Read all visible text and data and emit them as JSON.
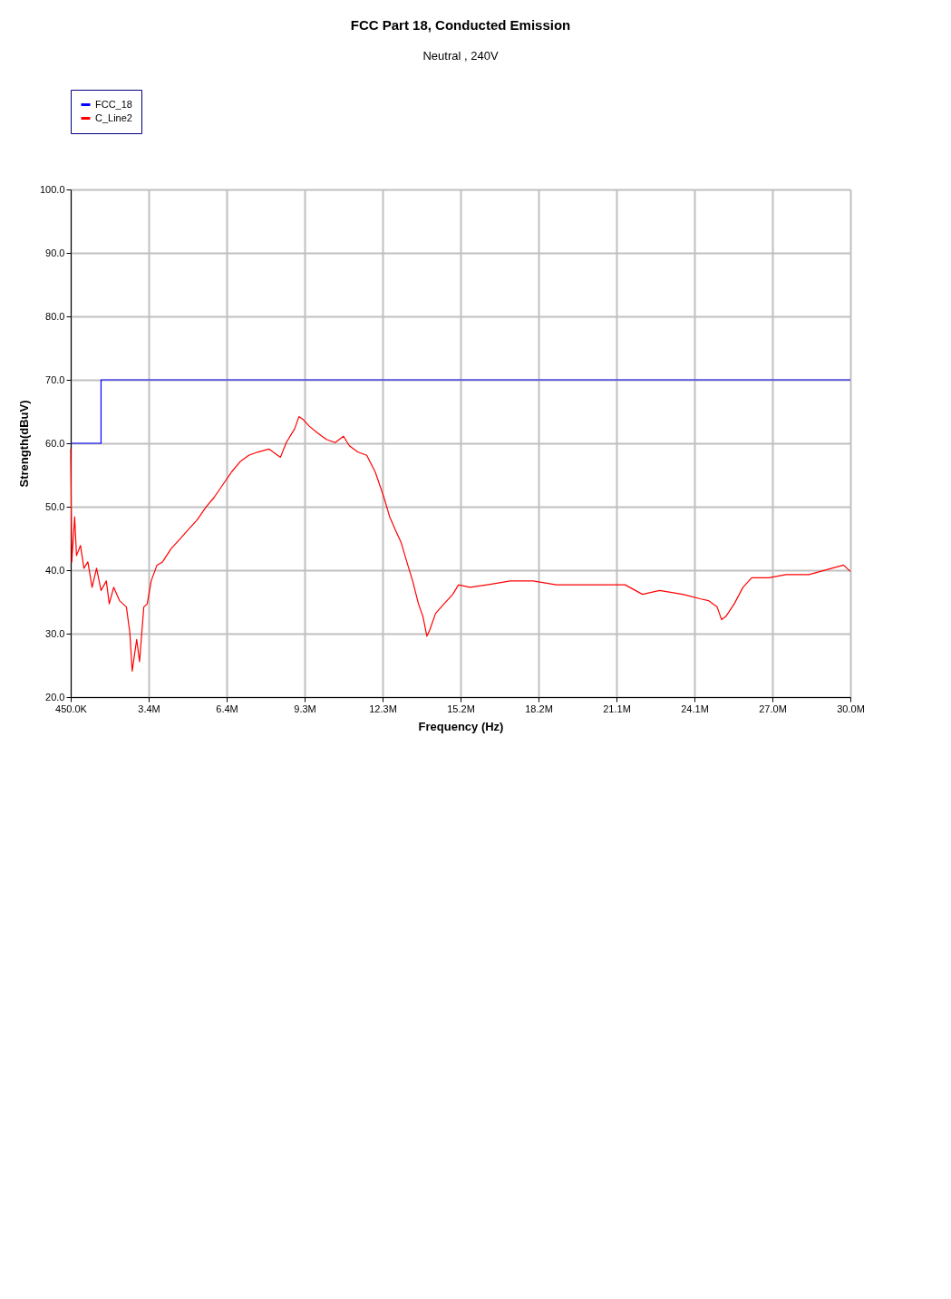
{
  "chart_data": {
    "type": "line",
    "title": "FCC Part 18, Conducted Emission",
    "subtitle": "Neutral , 240V",
    "xlabel": "Frequency (Hz)",
    "ylabel": "Strength(dBuV)",
    "xlim": [
      450000,
      30000000
    ],
    "xticks": [
      {
        "value": 450000,
        "label": "450.0K"
      },
      {
        "value": 3405000,
        "label": "3.4M"
      },
      {
        "value": 6360000,
        "label": "6.4M"
      },
      {
        "value": 9315000,
        "label": "9.3M"
      },
      {
        "value": 12270000,
        "label": "12.3M"
      },
      {
        "value": 15225000,
        "label": "15.2M"
      },
      {
        "value": 18180000,
        "label": "18.2M"
      },
      {
        "value": 21135000,
        "label": "21.1M"
      },
      {
        "value": 24090000,
        "label": "24.1M"
      },
      {
        "value": 27045000,
        "label": "27.0M"
      },
      {
        "value": 30000000,
        "label": "30.0M"
      }
    ],
    "ylim": [
      20,
      100
    ],
    "yticks": [
      {
        "value": 20,
        "label": "20.0"
      },
      {
        "value": 30,
        "label": "30.0"
      },
      {
        "value": 40,
        "label": "40.0"
      },
      {
        "value": 50,
        "label": "50.0"
      },
      {
        "value": 60,
        "label": "60.0"
      },
      {
        "value": 70,
        "label": "70.0"
      },
      {
        "value": 80,
        "label": "80.0"
      },
      {
        "value": 90,
        "label": "90.0"
      },
      {
        "value": 100,
        "label": "100.0"
      }
    ],
    "grid": true,
    "legend": "top left",
    "line_style": "solid",
    "marker": "none",
    "series": [
      {
        "name": "FCC_18",
        "color": "#0000ff",
        "x": [
          450000,
          1600000,
          1600000,
          30000000
        ],
        "values": [
          60,
          60,
          70,
          70
        ]
      },
      {
        "name": "C_Line2",
        "color": "#ff0000",
        "x": [
          450000,
          490000,
          600000,
          670000,
          820000,
          950000,
          1100000,
          1260000,
          1430000,
          1600000,
          1800000,
          1910000,
          2080000,
          2300000,
          2560000,
          2690000,
          2780000,
          2950000,
          3060000,
          3220000,
          3350000,
          3500000,
          3720000,
          3930000,
          4260000,
          4590000,
          4910000,
          5240000,
          5570000,
          5890000,
          6220000,
          6550000,
          6870000,
          7200000,
          7530000,
          7960000,
          8400000,
          8620000,
          8940000,
          9100000,
          9270000,
          9490000,
          9810000,
          10140000,
          10470000,
          10790000,
          11010000,
          11340000,
          11670000,
          11990000,
          12320000,
          12540000,
          12750000,
          12970000,
          13190000,
          13410000,
          13630000,
          13800000,
          13950000,
          14060000,
          14280000,
          14600000,
          14930000,
          15150000,
          15580000,
          16240000,
          17110000,
          17980000,
          18850000,
          19720000,
          20590000,
          21460000,
          22120000,
          22770000,
          23640000,
          24300000,
          24620000,
          24950000,
          25120000,
          25280000,
          25600000,
          25930000,
          26260000,
          26910000,
          27560000,
          28430000,
          29300000,
          29740000,
          30000000
        ],
        "values": [
          59.1,
          41.3,
          48.4,
          42.3,
          43.9,
          40.3,
          41.3,
          37.3,
          40.3,
          36.8,
          38.3,
          34.7,
          37.3,
          35.2,
          34.2,
          30.2,
          24.1,
          29.1,
          25.6,
          34.2,
          34.7,
          38.3,
          40.8,
          41.3,
          43.4,
          44.9,
          46.4,
          47.9,
          49.9,
          51.5,
          53.5,
          55.5,
          57.1,
          58.1,
          58.6,
          59.1,
          57.8,
          60.1,
          62.3,
          64.2,
          63.7,
          62.7,
          61.6,
          60.6,
          60.1,
          61.1,
          59.6,
          58.6,
          58.1,
          55.5,
          51.5,
          48.4,
          46.4,
          44.4,
          41.3,
          38.3,
          34.7,
          32.7,
          29.6,
          30.6,
          33.2,
          34.7,
          36.2,
          37.7,
          37.3,
          37.7,
          38.3,
          38.3,
          37.7,
          37.7,
          37.7,
          37.7,
          36.2,
          36.8,
          36.2,
          35.5,
          35.2,
          34.2,
          32.2,
          32.7,
          34.7,
          37.3,
          38.8,
          38.8,
          39.3,
          39.3,
          40.3,
          40.8,
          39.8
        ]
      }
    ]
  }
}
